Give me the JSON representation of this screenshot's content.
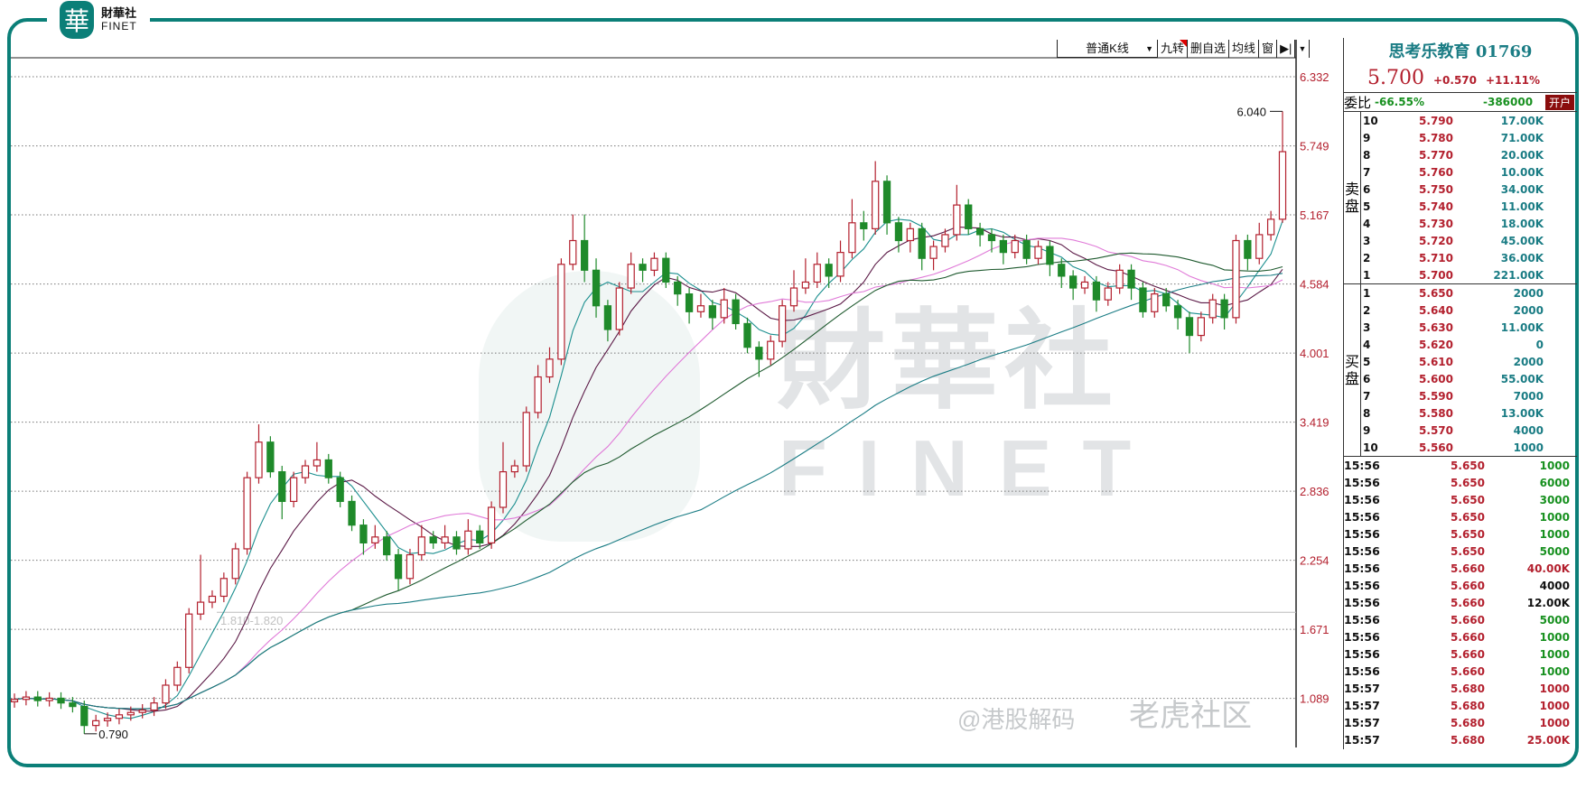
{
  "brand": {
    "logo_glyph": "華",
    "name_cn": "財華社",
    "name_en": "FINET"
  },
  "watermarks": {
    "center_cn": "財華社",
    "center_en": "FINET",
    "tiger": "老虎社区",
    "hk": "@港股解码"
  },
  "toolbar": {
    "kline_type": "普通K线",
    "items": [
      "九转",
      "删自选",
      "均线",
      "窗"
    ],
    "play_icon": "skip-forward-icon",
    "more_icon": "chevron-down-icon"
  },
  "colors": {
    "up": "#b3202e",
    "down": "#1f8a2a",
    "brand": "#0b7f78",
    "ma": [
      "#1c8f8f",
      "#5a1845",
      "#e07ad8",
      "#1f5a2f",
      "#1a7c84"
    ]
  },
  "chart_data": {
    "type": "candlestick",
    "ylim": [
      0.75,
      6.6
    ],
    "y_ticks": [
      "6.332",
      "5.749",
      "5.167",
      "4.584",
      "4.001",
      "3.419",
      "2.836",
      "2.254",
      "1.671",
      "1.089"
    ],
    "grid": "horizontal dotted",
    "annotations": {
      "high": "6.040",
      "low": "0.790",
      "range_line": "1.810-1.820"
    },
    "range_line_value": 1.815,
    "open": [
      1.06,
      1.08,
      1.1,
      1.07,
      1.09,
      1.05,
      1.02,
      0.86,
      0.9,
      0.92,
      0.95,
      0.97,
      0.99,
      1.05,
      1.2,
      1.35,
      1.8,
      1.9,
      1.95,
      2.1,
      2.35,
      2.95,
      3.25,
      3.0,
      2.75,
      2.95,
      3.05,
      3.1,
      2.95,
      2.75,
      2.55,
      2.4,
      2.45,
      2.3,
      2.1,
      2.3,
      2.45,
      2.4,
      2.45,
      2.35,
      2.5,
      2.4,
      2.7,
      3.0,
      3.05,
      3.5,
      3.8,
      3.95,
      4.75,
      4.95,
      4.7,
      4.4,
      4.2,
      4.55,
      4.75,
      4.7,
      4.8,
      4.6,
      4.5,
      4.35,
      4.4,
      4.3,
      4.45,
      4.25,
      4.05,
      3.95,
      4.1,
      4.4,
      4.55,
      4.6,
      4.75,
      4.65,
      4.85,
      5.1,
      5.05,
      5.45,
      5.1,
      4.95,
      5.05,
      4.8,
      4.9,
      5.0,
      5.25,
      5.05,
      5.0,
      4.95,
      4.85,
      4.95,
      4.8,
      4.9,
      4.75,
      4.65,
      4.55,
      4.6,
      4.45,
      4.55,
      4.7,
      4.55,
      4.35,
      4.5,
      4.4,
      4.3,
      4.15,
      4.3,
      4.45,
      4.3,
      4.95,
      4.8,
      5.0,
      5.13
    ],
    "close": [
      1.08,
      1.1,
      1.07,
      1.09,
      1.05,
      1.02,
      0.86,
      0.9,
      0.92,
      0.95,
      0.97,
      0.99,
      1.05,
      1.2,
      1.35,
      1.8,
      1.9,
      1.95,
      2.1,
      2.35,
      2.95,
      3.25,
      3.0,
      2.75,
      2.95,
      3.05,
      3.1,
      2.95,
      2.75,
      2.55,
      2.4,
      2.45,
      2.3,
      2.1,
      2.3,
      2.45,
      2.4,
      2.45,
      2.35,
      2.5,
      2.4,
      2.7,
      3.0,
      3.05,
      3.5,
      3.8,
      3.95,
      4.75,
      4.95,
      4.7,
      4.4,
      4.2,
      4.55,
      4.75,
      4.7,
      4.8,
      4.6,
      4.5,
      4.35,
      4.4,
      4.3,
      4.45,
      4.25,
      4.05,
      3.95,
      4.1,
      4.4,
      4.55,
      4.6,
      4.75,
      4.65,
      4.85,
      5.1,
      5.05,
      5.45,
      5.1,
      4.95,
      5.05,
      4.8,
      4.9,
      5.0,
      5.25,
      5.05,
      5.0,
      4.95,
      4.85,
      4.95,
      4.8,
      4.9,
      4.75,
      4.65,
      4.55,
      4.6,
      4.45,
      4.55,
      4.7,
      4.55,
      4.35,
      4.5,
      4.4,
      4.3,
      4.15,
      4.3,
      4.45,
      4.3,
      4.95,
      4.8,
      5.0,
      5.13,
      5.7
    ],
    "high": [
      1.13,
      1.15,
      1.15,
      1.14,
      1.14,
      1.1,
      1.07,
      0.95,
      0.97,
      1.0,
      1.02,
      1.04,
      1.1,
      1.25,
      1.4,
      1.85,
      2.3,
      2.0,
      2.15,
      2.4,
      3.0,
      3.4,
      3.3,
      3.05,
      3.0,
      3.1,
      3.25,
      3.15,
      3.0,
      2.8,
      2.6,
      2.55,
      2.5,
      2.35,
      2.35,
      2.55,
      2.5,
      2.55,
      2.5,
      2.6,
      2.55,
      2.75,
      3.25,
      3.1,
      3.55,
      3.9,
      4.05,
      4.8,
      5.17,
      5.17,
      4.8,
      4.45,
      4.6,
      4.85,
      4.8,
      4.85,
      4.85,
      4.65,
      4.55,
      4.5,
      4.45,
      4.55,
      4.5,
      4.3,
      4.1,
      4.15,
      4.45,
      4.7,
      4.8,
      4.85,
      4.8,
      4.95,
      5.3,
      5.2,
      5.62,
      5.5,
      5.15,
      5.1,
      5.1,
      4.95,
      5.05,
      5.42,
      5.3,
      5.1,
      5.05,
      5.0,
      5.0,
      5.0,
      4.95,
      4.95,
      4.8,
      4.7,
      4.65,
      4.65,
      4.6,
      4.75,
      4.75,
      4.6,
      4.55,
      4.55,
      4.45,
      4.35,
      4.35,
      4.5,
      4.5,
      5.0,
      5.0,
      5.1,
      5.2,
      6.04
    ],
    "low": [
      1.01,
      1.03,
      1.02,
      1.02,
      1.0,
      0.97,
      0.79,
      0.81,
      0.85,
      0.87,
      0.9,
      0.92,
      0.94,
      1.0,
      1.15,
      1.3,
      1.75,
      1.85,
      1.9,
      2.05,
      2.3,
      2.9,
      2.95,
      2.6,
      2.7,
      2.9,
      3.0,
      2.9,
      2.7,
      2.5,
      2.3,
      2.35,
      2.25,
      2.0,
      2.05,
      2.25,
      2.35,
      2.35,
      2.3,
      2.3,
      2.35,
      2.35,
      2.65,
      2.95,
      3.0,
      3.45,
      3.75,
      3.9,
      4.7,
      4.6,
      4.3,
      4.1,
      4.15,
      4.5,
      4.6,
      4.65,
      4.55,
      4.4,
      4.25,
      4.3,
      4.2,
      4.25,
      4.2,
      4.0,
      3.8,
      3.9,
      4.05,
      4.35,
      4.5,
      4.55,
      4.55,
      4.6,
      4.8,
      4.95,
      5.0,
      5.0,
      4.85,
      4.85,
      4.7,
      4.7,
      4.85,
      4.95,
      5.0,
      4.9,
      4.85,
      4.75,
      4.8,
      4.75,
      4.75,
      4.65,
      4.55,
      4.45,
      4.5,
      4.35,
      4.4,
      4.5,
      4.45,
      4.3,
      4.3,
      4.35,
      4.2,
      4.0,
      4.1,
      4.25,
      4.2,
      4.25,
      4.7,
      4.75,
      4.95,
      5.1
    ],
    "moving_averages": [
      5,
      10,
      20,
      30,
      60
    ]
  },
  "quote": {
    "title": "思考乐教育 01769",
    "price": "5.700",
    "change": "+0.570",
    "change_pct": "+11.11%",
    "ratio_label": "委比",
    "ratio_pct": "-66.55%",
    "ratio_diff": "-386000",
    "open_account": "开户",
    "sell_label": "卖盘",
    "buy_label": "买盘",
    "asks": [
      {
        "n": "10",
        "p": "5.790",
        "v": "17.00K"
      },
      {
        "n": "9",
        "p": "5.780",
        "v": "71.00K"
      },
      {
        "n": "8",
        "p": "5.770",
        "v": "20.00K"
      },
      {
        "n": "7",
        "p": "5.760",
        "v": "10.00K"
      },
      {
        "n": "6",
        "p": "5.750",
        "v": "34.00K"
      },
      {
        "n": "5",
        "p": "5.740",
        "v": "11.00K"
      },
      {
        "n": "4",
        "p": "5.730",
        "v": "18.00K"
      },
      {
        "n": "3",
        "p": "5.720",
        "v": "45.00K"
      },
      {
        "n": "2",
        "p": "5.710",
        "v": "36.00K"
      },
      {
        "n": "1",
        "p": "5.700",
        "v": "221.00K"
      }
    ],
    "bids": [
      {
        "n": "1",
        "p": "5.650",
        "v": "2000"
      },
      {
        "n": "2",
        "p": "5.640",
        "v": "2000"
      },
      {
        "n": "3",
        "p": "5.630",
        "v": "11.00K"
      },
      {
        "n": "4",
        "p": "5.620",
        "v": "0"
      },
      {
        "n": "5",
        "p": "5.610",
        "v": "2000"
      },
      {
        "n": "6",
        "p": "5.600",
        "v": "55.00K"
      },
      {
        "n": "7",
        "p": "5.590",
        "v": "7000"
      },
      {
        "n": "8",
        "p": "5.580",
        "v": "13.00K"
      },
      {
        "n": "9",
        "p": "5.570",
        "v": "4000"
      },
      {
        "n": "10",
        "p": "5.560",
        "v": "1000"
      }
    ],
    "trades": [
      {
        "t": "15:56",
        "p": "5.650",
        "v": "1000",
        "c": "#17901f"
      },
      {
        "t": "15:56",
        "p": "5.650",
        "v": "6000",
        "c": "#17901f"
      },
      {
        "t": "15:56",
        "p": "5.650",
        "v": "3000",
        "c": "#17901f"
      },
      {
        "t": "15:56",
        "p": "5.650",
        "v": "1000",
        "c": "#17901f"
      },
      {
        "t": "15:56",
        "p": "5.650",
        "v": "1000",
        "c": "#17901f"
      },
      {
        "t": "15:56",
        "p": "5.650",
        "v": "5000",
        "c": "#17901f"
      },
      {
        "t": "15:56",
        "p": "5.660",
        "v": "40.00K",
        "c": "#b3202e"
      },
      {
        "t": "15:56",
        "p": "5.660",
        "v": "4000",
        "c": "#111111"
      },
      {
        "t": "15:56",
        "p": "5.660",
        "v": "12.00K",
        "c": "#111111"
      },
      {
        "t": "15:56",
        "p": "5.660",
        "v": "5000",
        "c": "#17901f"
      },
      {
        "t": "15:56",
        "p": "5.660",
        "v": "1000",
        "c": "#17901f"
      },
      {
        "t": "15:56",
        "p": "5.660",
        "v": "1000",
        "c": "#17901f"
      },
      {
        "t": "15:56",
        "p": "5.660",
        "v": "1000",
        "c": "#17901f"
      },
      {
        "t": "15:57",
        "p": "5.680",
        "v": "1000",
        "c": "#b3202e"
      },
      {
        "t": "15:57",
        "p": "5.680",
        "v": "1000",
        "c": "#b3202e"
      },
      {
        "t": "15:57",
        "p": "5.680",
        "v": "1000",
        "c": "#b3202e"
      },
      {
        "t": "15:57",
        "p": "5.680",
        "v": "25.00K",
        "c": "#b3202e"
      }
    ]
  }
}
